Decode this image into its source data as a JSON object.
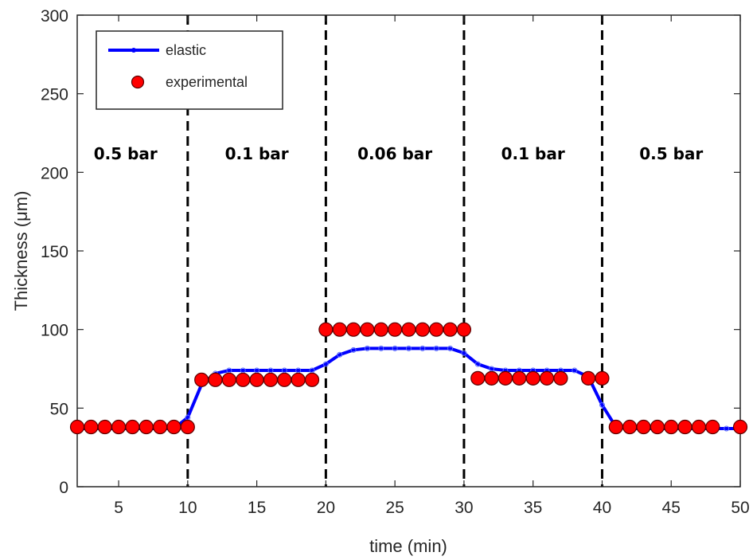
{
  "chart_data": {
    "type": "line",
    "xlabel": "time (min)",
    "ylabel": "Thickness (μm)",
    "xlim": [
      2,
      50
    ],
    "ylim": [
      0,
      300
    ],
    "xticks": [
      5,
      10,
      15,
      20,
      25,
      30,
      35,
      40,
      45,
      50
    ],
    "yticks": [
      0,
      50,
      100,
      150,
      200,
      250,
      300
    ],
    "grid": false,
    "legend_position": "top-left",
    "pressure_boundaries": [
      10,
      20,
      30,
      40
    ],
    "regions": [
      {
        "label": "0.5 bar",
        "x": 5.5
      },
      {
        "label": "0.1 bar",
        "x": 15
      },
      {
        "label": "0.06 bar",
        "x": 25
      },
      {
        "label": "0.1 bar",
        "x": 35
      },
      {
        "label": "0.5 bar",
        "x": 45
      }
    ],
    "series": [
      {
        "name": "elastic",
        "color": "#0000ff",
        "marker": "open-circle",
        "x": [
          2,
          3,
          4,
          5,
          6,
          7,
          8,
          9,
          10,
          11,
          12,
          13,
          14,
          15,
          16,
          17,
          18,
          19,
          20,
          21,
          22,
          23,
          24,
          25,
          26,
          27,
          28,
          29,
          30,
          31,
          32,
          33,
          34,
          35,
          36,
          37,
          38,
          39,
          40,
          41,
          42,
          43,
          44,
          45,
          46,
          47,
          48,
          49,
          50
        ],
        "y": [
          37,
          37,
          37,
          37,
          37,
          37,
          37,
          37,
          44,
          65,
          72,
          74,
          74,
          74,
          74,
          74,
          74,
          74,
          78,
          84,
          87,
          88,
          88,
          88,
          88,
          88,
          88,
          88,
          85,
          78,
          75,
          74,
          74,
          74,
          74,
          74,
          74,
          70,
          52,
          38,
          37,
          37,
          37,
          37,
          37,
          37,
          37,
          37,
          37
        ]
      },
      {
        "name": "experimental",
        "color": "#ff0000",
        "marker": "filled-circle",
        "x": [
          2,
          3,
          4,
          5,
          6,
          7,
          8,
          9,
          10,
          11,
          12,
          13,
          14,
          15,
          16,
          17,
          18,
          19,
          20,
          21,
          22,
          23,
          24,
          25,
          26,
          27,
          28,
          29,
          30,
          31,
          32,
          33,
          34,
          35,
          36,
          37,
          39,
          40,
          41,
          42,
          43,
          44,
          45,
          46,
          47,
          48,
          50
        ],
        "y": [
          38,
          38,
          38,
          38,
          38,
          38,
          38,
          38,
          38,
          68,
          68,
          68,
          68,
          68,
          68,
          68,
          68,
          68,
          100,
          100,
          100,
          100,
          100,
          100,
          100,
          100,
          100,
          100,
          100,
          69,
          69,
          69,
          69,
          69,
          69,
          69,
          69,
          69,
          38,
          38,
          38,
          38,
          38,
          38,
          38,
          38,
          38
        ]
      }
    ]
  }
}
